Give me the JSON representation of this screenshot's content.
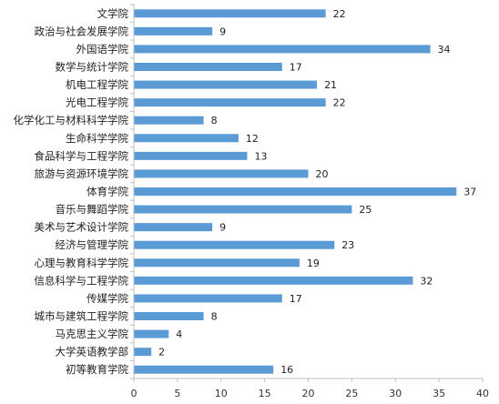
{
  "chart_data": {
    "type": "bar",
    "orientation": "horizontal",
    "title": "",
    "xlabel": "",
    "ylabel": "",
    "xlim": [
      0,
      40
    ],
    "x_ticks": [
      "0",
      "5",
      "10",
      "15",
      "20",
      "25",
      "30",
      "35",
      "40"
    ],
    "grid": false,
    "legend": "none",
    "bar_color": "#5b9bd5",
    "data_labels": true,
    "categories": [
      "文学院",
      "政治与社会发展学院",
      "外国语学院",
      "数学与统计学院",
      "机电工程学院",
      "光电工程学院",
      "化学化工与材料科学学院",
      "生命科学学院",
      "食品科学与工程学院",
      "旅游与资源环境学院",
      "体育学院",
      "音乐与舞蹈学院",
      "美术与艺术设计学院",
      "经济与管理学院",
      "心理与教育科学学院",
      "信息科学与工程学院",
      "传媒学院",
      "城市与建筑工程学院",
      "马克思主义学院",
      "大学英语教学部",
      "初等教育学院"
    ],
    "values": [
      22,
      9,
      34,
      17,
      21,
      22,
      8,
      12,
      13,
      20,
      37,
      25,
      9,
      23,
      19,
      32,
      17,
      8,
      4,
      2,
      16
    ]
  }
}
